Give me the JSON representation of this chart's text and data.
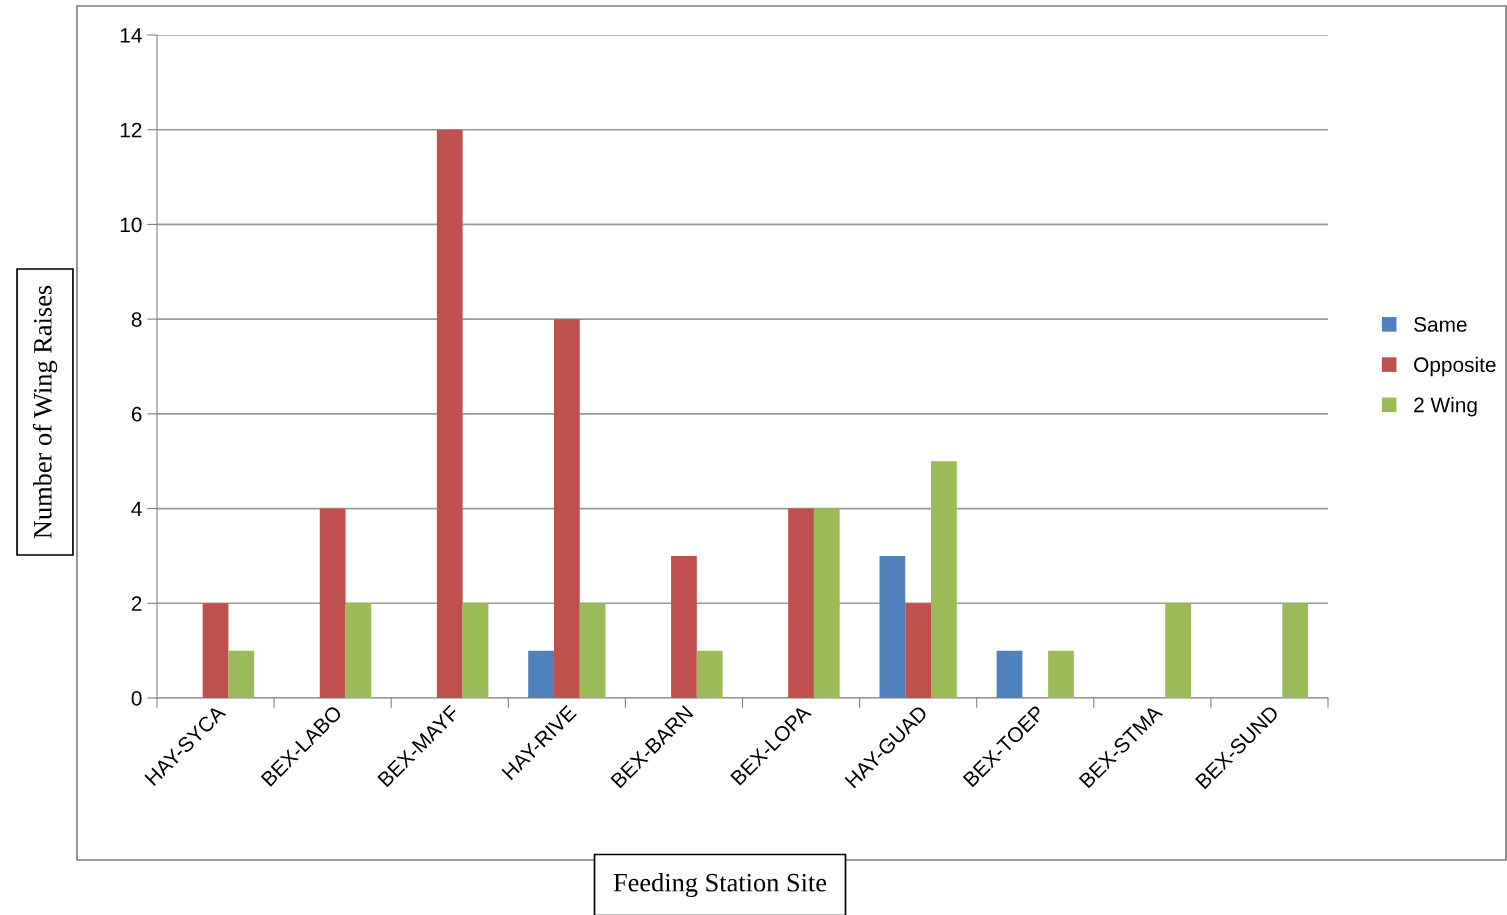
{
  "chart_data": {
    "type": "bar",
    "xlabel": "Feeding Station Site",
    "ylabel": "Number of Wing Raises",
    "categories": [
      "HAY-SYCA",
      "BEX-LABO",
      "BEX-MAYF",
      "HAY-RIVE",
      "BEX-BARN",
      "BEX-LOPA",
      "HAY-GUAD",
      "BEX-TOEP",
      "BEX-STMA",
      "BEX-SUND"
    ],
    "series": [
      {
        "name": "Same",
        "color": "#4f81bd",
        "values": [
          0,
          0,
          0,
          1,
          0,
          0,
          3,
          1,
          0,
          0
        ]
      },
      {
        "name": "Opposite",
        "color": "#c0504d",
        "values": [
          2,
          4,
          12,
          8,
          3,
          4,
          2,
          0,
          0,
          0
        ]
      },
      {
        "name": "2 Wing",
        "color": "#9bbb59",
        "values": [
          1,
          2,
          2,
          2,
          1,
          4,
          5,
          1,
          2,
          2
        ]
      }
    ],
    "ylim": [
      0,
      14
    ],
    "yticks": [
      0,
      2,
      4,
      6,
      8,
      10,
      12,
      14
    ],
    "grid": "y",
    "legend": "right"
  }
}
